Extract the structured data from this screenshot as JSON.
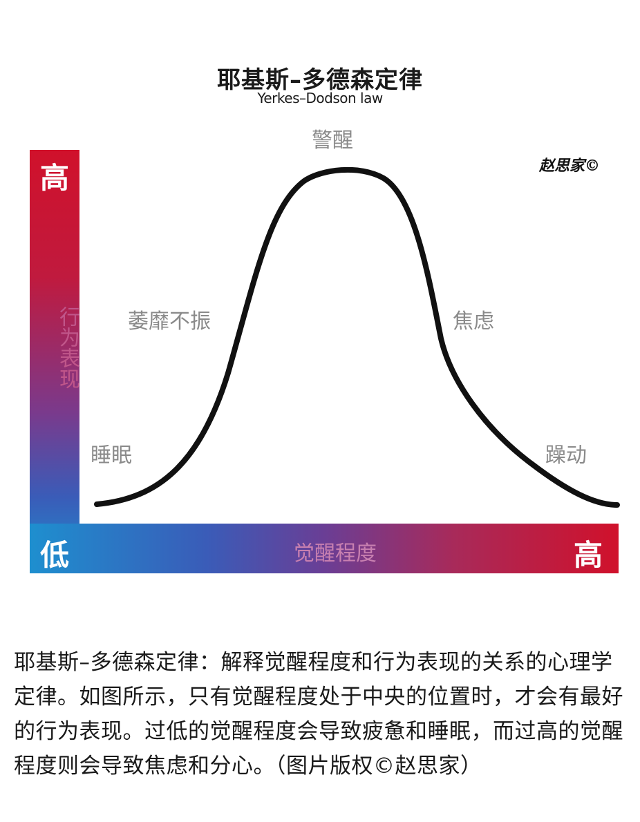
{
  "header": {
    "title": "耶基斯–多德森定律",
    "subtitle": "Yerkes–Dodson law",
    "author_mark": "赵思家©"
  },
  "axes": {
    "y_high": "高",
    "y_label": "行为表现",
    "x_low": "低",
    "x_label": "觉醒程度",
    "x_high": "高"
  },
  "zones": {
    "top": "警醒",
    "left_mid": "萎靡不振",
    "right_mid": "焦虑",
    "left_low": "睡眠",
    "right_low": "躁动"
  },
  "caption": "耶基斯–多德森定律：解释觉醒程度和行为表现的关系的心理学定律。如图所示，只有觉醒程度处于中央的位置时，才会有最好的行为表现。过低的觉醒程度会导致疲惫和睡眠，而过高的觉醒程度则会导致焦虑和分心。（图片版权©赵思家）",
  "colors": {
    "gradient_high": "#d0112b",
    "gradient_low": "#1e8fcf",
    "curve": "#111111",
    "zone_label": "#8a8a8a"
  }
}
